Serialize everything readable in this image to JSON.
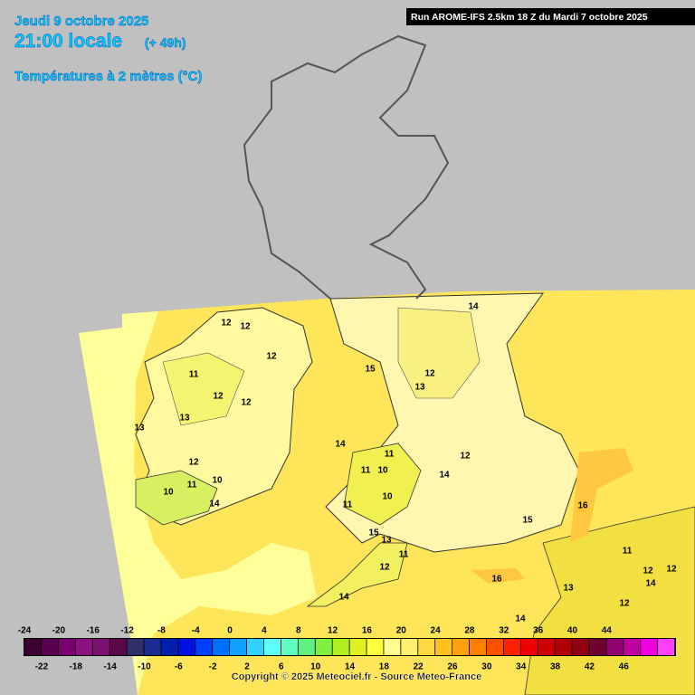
{
  "header": {
    "date": "Jeudi 9 octobre 2025",
    "time": "21:00 locale",
    "lead": "(+ 49h)",
    "parameter": "Températures à 2 mètres (°C)",
    "run": "Run AROME-IFS 2.5km 18 Z du Mardi 7 octobre 2025"
  },
  "map": {
    "contour_labels": [
      12,
      12,
      12,
      11,
      12,
      12,
      13,
      13,
      12,
      11,
      10,
      10,
      14,
      14,
      15,
      12,
      13,
      14,
      11,
      11,
      10,
      12,
      14,
      10,
      11,
      15,
      16,
      15,
      13,
      12,
      11,
      14,
      16,
      11,
      12,
      12,
      14,
      12,
      13,
      14
    ]
  },
  "legend": {
    "top_labels": [
      -24,
      -20,
      -16,
      -12,
      -8,
      -4,
      0,
      4,
      8,
      12,
      16,
      20,
      24,
      28,
      32,
      36,
      40,
      44
    ],
    "bottom_labels": [
      -22,
      -18,
      -14,
      -10,
      -6,
      -2,
      2,
      6,
      10,
      14,
      18,
      22,
      26,
      30,
      34,
      38,
      42,
      46
    ],
    "colors": [
      "#3c0030",
      "#5a0050",
      "#7a0070",
      "#8c1080",
      "#7a1070",
      "#5a0848",
      "#303068",
      "#1a2c90",
      "#0020b0",
      "#0010e0",
      "#0040ff",
      "#0070ff",
      "#10a0ff",
      "#30d0ff",
      "#60ffff",
      "#60ffc0",
      "#60f080",
      "#80f040",
      "#b0f020",
      "#e0f020",
      "#ffff40",
      "#ffff90",
      "#fff070",
      "#ffd840",
      "#ffc020",
      "#ffa010",
      "#ff8000",
      "#ff5000",
      "#ff2000",
      "#f00000",
      "#d00000",
      "#b00000",
      "#900010",
      "#700030",
      "#900070",
      "#c000a0",
      "#f000e0",
      "#ff40ff"
    ]
  },
  "footer": {
    "copyright": "Copyright © 2025 Meteociel.fr - Source Meteo-France"
  }
}
